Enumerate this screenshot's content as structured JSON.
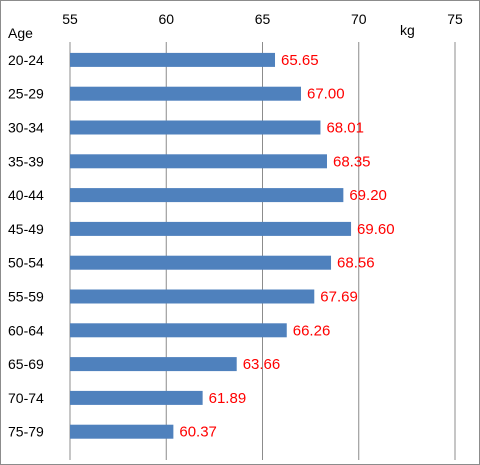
{
  "chart_data": {
    "type": "bar",
    "orientation": "horizontal",
    "xlabel": "kg",
    "ylabel": "Age",
    "xlim": [
      55,
      75
    ],
    "xticks": [
      55,
      60,
      65,
      70,
      75
    ],
    "grid": "vertical",
    "legend": "none",
    "categories": [
      "20-24",
      "25-29",
      "30-34",
      "35-39",
      "40-44",
      "45-49",
      "50-54",
      "55-59",
      "60-64",
      "65-69",
      "70-74",
      "75-79"
    ],
    "values": [
      65.65,
      67.0,
      68.01,
      68.35,
      69.2,
      69.6,
      68.56,
      67.69,
      66.26,
      63.66,
      61.89,
      60.37
    ],
    "value_labels": [
      "65.65",
      "67.00",
      "68.01",
      "68.35",
      "69.20",
      "69.60",
      "68.56",
      "67.69",
      "66.26",
      "63.66",
      "61.89",
      "60.37"
    ],
    "bar_color": "#4f81bd",
    "label_color": "#ff0000",
    "grid_color": "#8c8c8c"
  }
}
